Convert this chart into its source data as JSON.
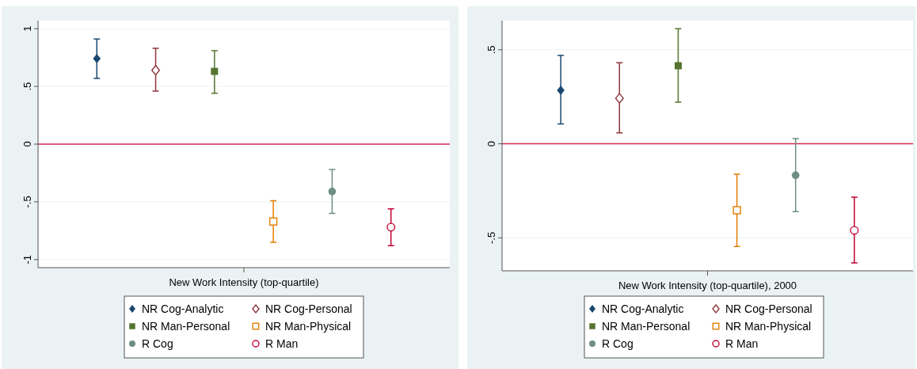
{
  "chart_data": [
    {
      "type": "scatter",
      "xlabel": "New Work Intensity (top-quartile)",
      "categories": [
        null,
        null,
        null,
        null,
        null,
        null
      ],
      "ylim": [
        -1.07,
        1.07
      ],
      "yticks": [
        {
          "value": -1,
          "label": "-1"
        },
        {
          "value": -0.5,
          "label": "-.5"
        },
        {
          "value": 0,
          "label": "0"
        },
        {
          "value": 0.5,
          "label": ".5"
        },
        {
          "value": 1,
          "label": "1"
        }
      ],
      "tick_labels": "y",
      "grid": "y",
      "legend": "bottom",
      "ref_lines": [
        {
          "axis": "y",
          "value": 0,
          "color": "#d42a52"
        }
      ],
      "series": [
        {
          "name": "NR Cog-Analytic",
          "color": "#1a476f",
          "marker": "diamond",
          "values": [
            0.74,
            null,
            null,
            null,
            null,
            null
          ],
          "errors": [
            [
              0.57,
              0.91
            ],
            null,
            null,
            null,
            null,
            null
          ]
        },
        {
          "name": "NR Cog-Personal",
          "color": "#90353b",
          "marker": "diamond",
          "values": [
            null,
            0.64,
            null,
            null,
            null,
            null
          ],
          "errors": [
            null,
            [
              0.46,
              0.83
            ],
            null,
            null,
            null,
            null
          ]
        },
        {
          "name": "NR Man-Personal",
          "color": "#55752f",
          "marker": "square",
          "values": [
            null,
            null,
            0.63,
            null,
            null,
            null
          ],
          "errors": [
            null,
            null,
            [
              0.44,
              0.81
            ],
            null,
            null,
            null
          ]
        },
        {
          "name": "NR Man-Physical",
          "color": "#e37e00",
          "marker": "square",
          "values": [
            null,
            null,
            null,
            -0.67,
            null,
            null
          ],
          "errors": [
            null,
            null,
            null,
            [
              -0.85,
              -0.49
            ],
            null,
            null
          ]
        },
        {
          "name": "R Cog",
          "color": "#6e8e84",
          "marker": "circle",
          "values": [
            null,
            null,
            null,
            null,
            -0.41,
            null
          ],
          "errors": [
            null,
            null,
            null,
            null,
            [
              -0.6,
              -0.22
            ],
            null
          ]
        },
        {
          "name": "R Man",
          "color": "#c10534",
          "marker": "circle",
          "values": [
            null,
            null,
            null,
            null,
            null,
            -0.72
          ],
          "errors": [
            null,
            null,
            null,
            null,
            null,
            [
              -0.88,
              -0.56
            ]
          ]
        }
      ]
    },
    {
      "type": "scatter",
      "xlabel": "New Work Intensity (top-quartile), 2000",
      "categories": [
        null,
        null,
        null,
        null,
        null,
        null
      ],
      "ylim": [
        -0.675,
        0.655
      ],
      "yticks": [
        {
          "value": -0.5,
          "label": "-.5"
        },
        {
          "value": 0,
          "label": "0"
        },
        {
          "value": 0.5,
          "label": ".5"
        }
      ],
      "tick_labels": "y",
      "grid": "y",
      "legend": "bottom",
      "ref_lines": [
        {
          "axis": "y",
          "value": 0,
          "color": "#d42a52"
        }
      ],
      "series": [
        {
          "name": "NR Cog-Analytic",
          "color": "#1a476f",
          "marker": "diamond",
          "values": [
            0.285,
            null,
            null,
            null,
            null,
            null
          ],
          "errors": [
            [
              0.106,
              0.47
            ],
            null,
            null,
            null,
            null,
            null
          ]
        },
        {
          "name": "NR Cog-Personal",
          "color": "#90353b",
          "marker": "diamond",
          "values": [
            null,
            0.242,
            null,
            null,
            null,
            null
          ],
          "errors": [
            null,
            [
              0.058,
              0.431
            ],
            null,
            null,
            null,
            null
          ]
        },
        {
          "name": "NR Man-Personal",
          "color": "#55752f",
          "marker": "square",
          "values": [
            null,
            null,
            0.415,
            null,
            null,
            null
          ],
          "errors": [
            null,
            null,
            [
              0.222,
              0.612
            ],
            null,
            null,
            null
          ]
        },
        {
          "name": "NR Man-Physical",
          "color": "#e37e00",
          "marker": "square",
          "values": [
            null,
            null,
            null,
            -0.353,
            null,
            null
          ],
          "errors": [
            null,
            null,
            null,
            [
              -0.546,
              -0.161
            ],
            null,
            null
          ]
        },
        {
          "name": "R Cog",
          "color": "#6e8e84",
          "marker": "circle",
          "values": [
            null,
            null,
            null,
            null,
            -0.167,
            null
          ],
          "errors": [
            null,
            null,
            null,
            null,
            [
              -0.36,
              0.028
            ],
            null
          ]
        },
        {
          "name": "R Man",
          "color": "#c10534",
          "marker": "circle",
          "values": [
            null,
            null,
            null,
            null,
            null,
            -0.46
          ],
          "errors": [
            null,
            null,
            null,
            null,
            null,
            [
              -0.633,
              -0.284
            ]
          ]
        }
      ]
    }
  ]
}
